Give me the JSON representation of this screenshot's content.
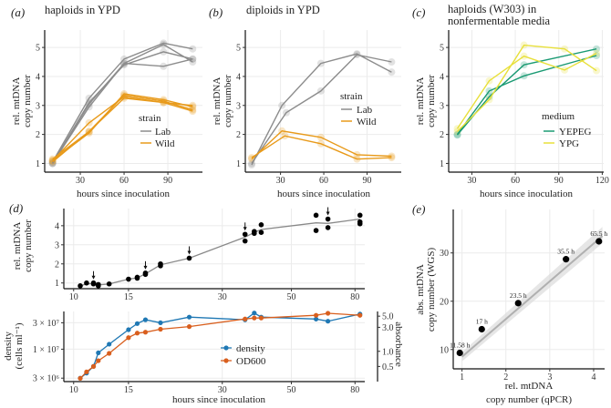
{
  "colors": {
    "lab": "#8c8c8c",
    "wild": "#e89a1a",
    "yepeg": "#1a9a73",
    "ypg": "#e8e03a",
    "density": "#1f78b4",
    "od600": "#d95f1e",
    "points": "#000000",
    "grid": "#ebebeb",
    "fit": "#b0b0b0",
    "ribbon": "#dcdcdc"
  },
  "panels": {
    "a": {
      "label": "(a)",
      "title": "haploids in YPD",
      "ylabel1": "rel. mtDNA",
      "ylabel2": "copy number",
      "xlabel": "hours since inoculation",
      "legend_title": "strain",
      "legend": [
        "Lab",
        "Wild"
      ]
    },
    "b": {
      "label": "(b)",
      "title": "diploids in YPD",
      "ylabel1": "rel. mtDNA",
      "ylabel2": "copy number",
      "xlabel": "hours since inoculation",
      "legend_title": "strain",
      "legend": [
        "Lab",
        "Wild"
      ]
    },
    "c": {
      "label": "(c)",
      "title1": "haploids (W303) in",
      "title2": "nonfermentable media",
      "ylabel1": "rel. mtDNA",
      "ylabel2": "copy number",
      "xlabel": "hours since inoculation",
      "legend_title": "medium",
      "legend": [
        "YEPEG",
        "YPG"
      ]
    },
    "d": {
      "label": "(d)",
      "ylabel1": "rel. mtDNA",
      "ylabel2": "copy number",
      "ylabel_bottom1": "density",
      "ylabel_bottom2": "(cells ml⁻¹)",
      "ylabel_right": "absorbance",
      "xlabel": "hours since inoculation",
      "legend": [
        "density",
        "OD600"
      ]
    },
    "e": {
      "label": "(e)",
      "ylabel1": "abs. mtDNA",
      "ylabel2": "copy number (WGS)",
      "xlabel1": "rel. mtDNA",
      "xlabel2": "copy number (qPCR)"
    }
  },
  "chart_data": [
    {
      "panel": "a",
      "type": "line",
      "xlim": [
        5.6,
        113.7
      ],
      "ylim": [
        0.7,
        5.6
      ],
      "grid": true,
      "legend_position": "center-right",
      "xticks": [
        30,
        60,
        90
      ],
      "yticks": [
        1,
        2,
        3,
        4,
        5
      ],
      "series": [
        {
          "group": "Lab",
          "x": [
            11,
            36,
            60,
            87,
            107
          ],
          "y": [
            1.05,
            3.25,
            4.6,
            5.15,
            4.95
          ]
        },
        {
          "group": "Lab",
          "x": [
            11,
            36,
            60,
            87,
            107
          ],
          "y": [
            1.0,
            3.05,
            4.45,
            5.1,
            4.5
          ]
        },
        {
          "group": "Lab",
          "x": [
            11,
            36,
            60,
            87,
            107
          ],
          "y": [
            1.0,
            3.1,
            4.4,
            4.85,
            4.6
          ]
        },
        {
          "group": "Lab",
          "x": [
            11,
            36,
            60,
            87,
            107
          ],
          "y": [
            1.0,
            2.95,
            4.45,
            4.35,
            4.6
          ]
        },
        {
          "group": "Wild",
          "x": [
            11,
            36,
            60,
            87,
            107
          ],
          "y": [
            1.1,
            2.05,
            3.4,
            3.2,
            2.95
          ]
        },
        {
          "group": "Wild",
          "x": [
            11,
            36,
            60,
            87,
            107
          ],
          "y": [
            1.1,
            2.4,
            3.3,
            3.1,
            3.0
          ]
        },
        {
          "group": "Wild",
          "x": [
            11,
            36,
            60,
            87,
            107
          ],
          "y": [
            1.05,
            2.1,
            3.35,
            3.15,
            2.85
          ]
        },
        {
          "group": "Wild",
          "x": [
            11,
            36,
            60,
            87,
            107
          ],
          "y": [
            1.15,
            2.1,
            3.25,
            3.1,
            2.8
          ]
        }
      ]
    },
    {
      "panel": "b",
      "type": "line",
      "xlim": [
        5.6,
        113.7
      ],
      "ylim": [
        0.7,
        5.6
      ],
      "grid": true,
      "legend_position": "center-right",
      "xticks": [
        30,
        60,
        90
      ],
      "yticks": [
        1,
        2,
        3,
        4,
        5
      ],
      "series": [
        {
          "group": "Lab",
          "x": [
            10,
            31,
            58,
            83,
            107
          ],
          "y": [
            0.95,
            3.0,
            4.45,
            4.78,
            4.15
          ]
        },
        {
          "group": "Lab",
          "x": [
            10,
            34,
            58,
            83,
            107
          ],
          "y": [
            1.0,
            2.75,
            3.5,
            4.75,
            4.5
          ]
        },
        {
          "group": "Wild",
          "x": [
            10,
            31,
            58,
            83,
            107
          ],
          "y": [
            1.15,
            2.12,
            1.9,
            1.3,
            1.25
          ]
        },
        {
          "group": "Wild",
          "x": [
            10,
            33,
            58,
            83,
            107
          ],
          "y": [
            1.2,
            1.95,
            1.68,
            1.15,
            1.2
          ]
        }
      ]
    },
    {
      "panel": "c",
      "type": "line",
      "xlim": [
        14,
        121
      ],
      "ylim": [
        0.7,
        5.6
      ],
      "grid": true,
      "legend_position": "center-right",
      "xticks": [
        30,
        60,
        90,
        120
      ],
      "yticks": [
        1,
        2,
        3,
        4,
        5
      ],
      "series": [
        {
          "group": "YEPEG",
          "x": [
            20,
            42,
            66,
            116
          ],
          "y": [
            2.0,
            3.5,
            4.02,
            4.72
          ]
        },
        {
          "group": "YEPEG",
          "x": [
            20,
            42,
            66,
            116
          ],
          "y": [
            1.98,
            3.3,
            4.4,
            4.95
          ]
        },
        {
          "group": "YPG",
          "x": [
            20,
            42,
            66,
            94,
            116
          ],
          "y": [
            2.2,
            3.85,
            4.7,
            4.22,
            4.8
          ]
        },
        {
          "group": "YPG",
          "x": [
            20,
            42,
            66,
            94,
            116
          ],
          "y": [
            2.1,
            3.2,
            5.08,
            4.95,
            4.2
          ]
        }
      ]
    },
    {
      "panel": "d-top",
      "type": "scatter",
      "x_scale": "log",
      "xlim": [
        9.3,
        86
      ],
      "ylim": [
        0.7,
        4.9
      ],
      "grid": true,
      "xticks": [
        10,
        15,
        30,
        50,
        80
      ],
      "yticks": [
        1,
        2,
        3,
        4
      ],
      "points": {
        "x": [
          10.5,
          11,
          11.58,
          11.58,
          12,
          12,
          13,
          15,
          16,
          16,
          17,
          17,
          19,
          19,
          23.5,
          35.5,
          35.5,
          38,
          38,
          40,
          40,
          60,
          60,
          65.5,
          65.5,
          83,
          83,
          83
        ],
        "y": [
          0.85,
          1.0,
          1.0,
          0.95,
          0.85,
          0.92,
          0.95,
          1.2,
          1.25,
          1.3,
          1.45,
          1.52,
          1.9,
          2.0,
          2.3,
          3.2,
          3.55,
          3.6,
          3.7,
          3.65,
          4.05,
          3.75,
          4.55,
          3.9,
          4.35,
          4.1,
          4.2,
          4.55
        ]
      },
      "trend": {
        "x": [
          10.5,
          11,
          11.58,
          12,
          13,
          15,
          16,
          17,
          19,
          23.5,
          35.5,
          38,
          40,
          60,
          65.5,
          83
        ],
        "y": [
          0.85,
          0.95,
          0.97,
          0.9,
          0.95,
          1.2,
          1.27,
          1.48,
          1.95,
          2.3,
          3.4,
          3.65,
          3.8,
          4.15,
          4.12,
          4.35
        ]
      },
      "arrows_at": [
        11.58,
        17,
        23.5,
        35.5,
        65.5
      ]
    },
    {
      "panel": "d-bottom",
      "type": "line",
      "x_scale": "log",
      "y_scale": "log",
      "xlim": [
        9.3,
        86
      ],
      "grid": true,
      "legend_position": "center",
      "xticks": [
        10,
        15,
        30,
        50,
        80
      ],
      "left_axis": {
        "ylim": [
          2600000.0,
          48000000.0
        ],
        "ticks": [
          3000000.0,
          10000000.0,
          30000000.0
        ],
        "tick_labels": [
          "3 × 10⁶",
          "1 × 10⁷",
          "3 × 10⁷"
        ]
      },
      "right_axis": {
        "ylim": [
          0.25,
          6.2
        ],
        "ticks": [
          0.5,
          1.0,
          3.0,
          5.0
        ],
        "tick_labels": [
          "0.5",
          "1.0",
          "3.0",
          "5.0"
        ]
      },
      "x": [
        10.5,
        11,
        11.58,
        12,
        13,
        15,
        16,
        17,
        19,
        23.5,
        35.5,
        38,
        40,
        60,
        65.5,
        83
      ],
      "series": [
        {
          "name": "density",
          "axis": "left",
          "y": [
            3000000.0,
            3700000.0,
            4900000.0,
            8600000.0,
            12300000.0,
            22500000.0,
            29000000.0,
            34000000.0,
            30000000.0,
            38000000.0,
            34000000.0,
            45000000.0,
            38000000.0,
            35000000.0,
            32000000.0,
            43000000.0
          ]
        },
        {
          "name": "OD600",
          "axis": "right",
          "y": [
            0.29,
            0.39,
            0.5,
            0.65,
            0.91,
            1.87,
            2.3,
            2.4,
            2.75,
            3.1,
            4.4,
            4.6,
            4.6,
            5.2,
            5.7,
            5.2
          ]
        }
      ]
    },
    {
      "panel": "e",
      "type": "scatter",
      "xlim": [
        0.8,
        4.25
      ],
      "ylim": [
        6,
        39
      ],
      "grid": true,
      "xticks": [
        1,
        2,
        3,
        4
      ],
      "yticks": [
        10,
        20,
        30
      ],
      "points": [
        {
          "x": 0.95,
          "y": 9.3,
          "label": "11.58 h"
        },
        {
          "x": 1.45,
          "y": 14.2,
          "label": "17 h"
        },
        {
          "x": 2.28,
          "y": 19.6,
          "label": "23.5 h"
        },
        {
          "x": 3.37,
          "y": 28.7,
          "label": "35.5 h"
        },
        {
          "x": 4.12,
          "y": 32.4,
          "label": "65.5 h"
        }
      ],
      "fit": {
        "x": [
          1.0,
          4.2
        ],
        "y": [
          8.5,
          33.5
        ]
      }
    }
  ]
}
